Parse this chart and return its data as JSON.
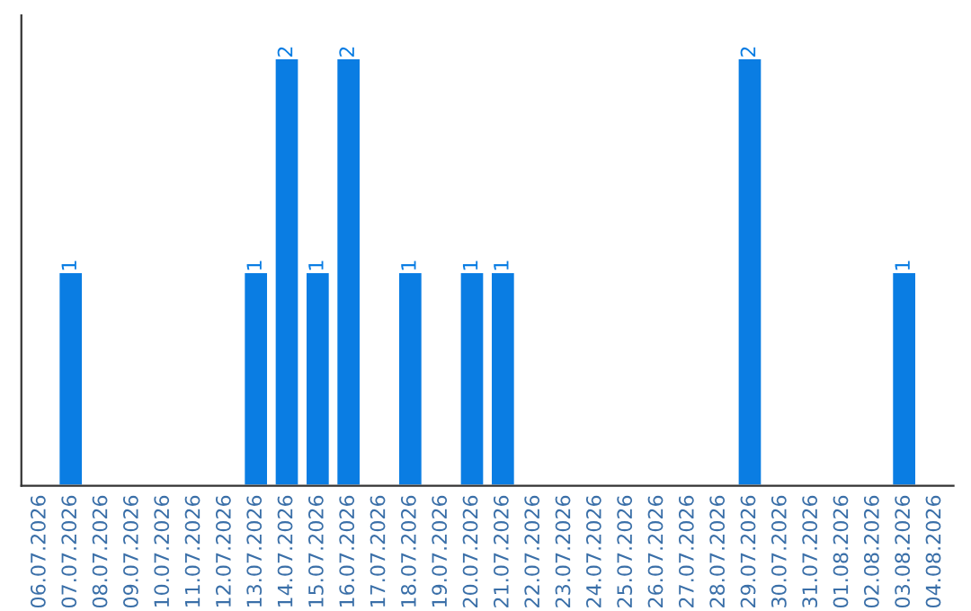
{
  "chart_data": {
    "type": "bar",
    "categories": [
      "06.07.2026",
      "07.07.2026",
      "08.07.2026",
      "09.07.2026",
      "10.07.2026",
      "11.07.2026",
      "12.07.2026",
      "13.07.2026",
      "14.07.2026",
      "15.07.2026",
      "16.07.2026",
      "17.07.2026",
      "18.07.2026",
      "19.07.2026",
      "20.07.2026",
      "21.07.2026",
      "22.07.2026",
      "23.07.2026",
      "24.07.2026",
      "25.07.2026",
      "26.07.2026",
      "27.07.2026",
      "28.07.2026",
      "29.07.2026",
      "30.07.2026",
      "31.07.2026",
      "01.08.2026",
      "02.08.2026",
      "03.08.2026",
      "04.08.2026"
    ],
    "values": [
      null,
      1,
      null,
      null,
      null,
      null,
      null,
      1,
      2,
      1,
      2,
      null,
      1,
      null,
      1,
      1,
      null,
      null,
      null,
      null,
      null,
      null,
      null,
      2,
      null,
      null,
      null,
      null,
      1,
      null
    ],
    "value_labels": [
      null,
      "1",
      null,
      null,
      null,
      null,
      null,
      "1",
      "2",
      "1",
      "2",
      null,
      "1",
      null,
      "1",
      "1",
      null,
      null,
      null,
      null,
      null,
      null,
      null,
      "2",
      null,
      null,
      null,
      null,
      "1",
      null
    ],
    "color": "#0a7de3",
    "tick_labels": "x",
    "grid": false,
    "legend": false
  }
}
